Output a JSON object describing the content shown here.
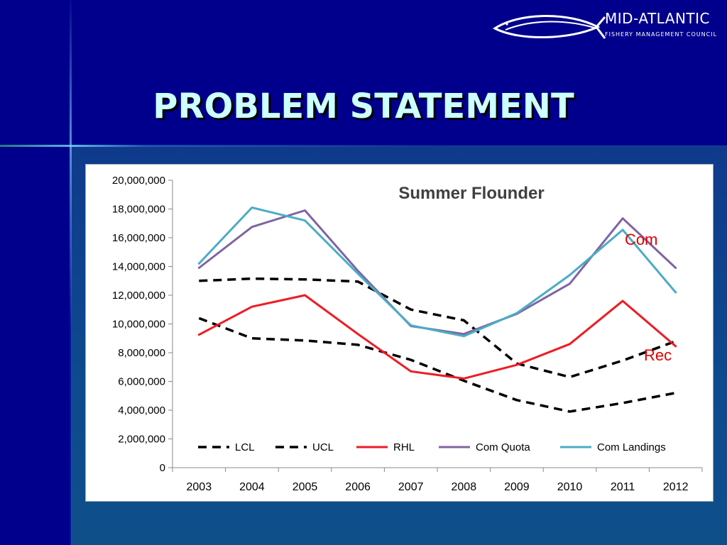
{
  "slide": {
    "title": "PROBLEM STATEMENT",
    "logo": {
      "name": "MID-ATLANTIC",
      "subtitle": "FISHERY MANAGEMENT COUNCIL"
    },
    "annotations": {
      "com": "Com",
      "rec": "Rec"
    }
  },
  "chart_data": {
    "type": "line",
    "title": "Summer Flounder",
    "xlabel": "",
    "ylabel": "",
    "x": [
      "2003",
      "2004",
      "2005",
      "2006",
      "2007",
      "2008",
      "2009",
      "2010",
      "2011",
      "2012"
    ],
    "ylim": [
      0,
      20000000
    ],
    "yticks": [
      0,
      2000000,
      4000000,
      6000000,
      8000000,
      10000000,
      12000000,
      14000000,
      16000000,
      18000000,
      20000000
    ],
    "ytick_labels": [
      "0",
      "2,000,000",
      "4,000,000",
      "6,000,000",
      "8,000,000",
      "10,000,000",
      "12,000,000",
      "14,000,000",
      "16,000,000",
      "18,000,000",
      "20,000,000"
    ],
    "legend": "bottom-inside",
    "grid": false,
    "series": [
      {
        "name": "LCL",
        "color": "#000000",
        "dashed": true,
        "values": [
          10400000,
          9000000,
          8850000,
          8550000,
          7500000,
          6050000,
          4700000,
          3900000,
          4500000,
          5200000
        ]
      },
      {
        "name": "UCL",
        "color": "#000000",
        "dashed": true,
        "values": [
          13000000,
          13150000,
          13100000,
          12950000,
          11000000,
          10250000,
          7250000,
          6300000,
          7450000,
          8800000
        ]
      },
      {
        "name": "RHL",
        "color": "#ee1c24",
        "dashed": false,
        "values": [
          9250000,
          11200000,
          12000000,
          9300000,
          6700000,
          6200000,
          7150000,
          8600000,
          11600000,
          8450000
        ]
      },
      {
        "name": "Com Quota",
        "color": "#8064a2",
        "dashed": false,
        "values": [
          13900000,
          16750000,
          17900000,
          13700000,
          9850000,
          9300000,
          10700000,
          12800000,
          17350000,
          13900000
        ]
      },
      {
        "name": "Com Landings",
        "color": "#4bacc6",
        "dashed": false,
        "values": [
          14200000,
          18100000,
          17200000,
          13500000,
          9900000,
          9150000,
          10750000,
          13400000,
          16550000,
          12200000
        ]
      }
    ]
  }
}
